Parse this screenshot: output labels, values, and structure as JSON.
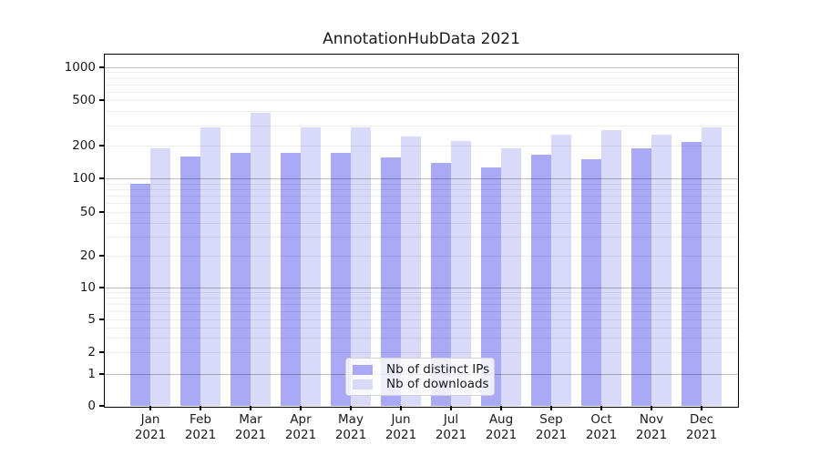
{
  "title": "AnnotationHubData 2021",
  "legend": {
    "items": [
      {
        "label": "Nb of distinct IPs",
        "color": "#a9a9f6"
      },
      {
        "label": "Nb of downloads",
        "color": "#d9d9f9"
      }
    ]
  },
  "chart_data": {
    "type": "bar",
    "title": "AnnotationHubData 2021",
    "categories": [
      "Jan",
      "Feb",
      "Mar",
      "Apr",
      "May",
      "Jun",
      "Jul",
      "Aug",
      "Sep",
      "Oct",
      "Nov",
      "Dec"
    ],
    "category_year": "2021",
    "series": [
      {
        "name": "Nb of distinct IPs",
        "color": "#a9a9f6",
        "values": [
          90,
          160,
          170,
          170,
          170,
          155,
          140,
          125,
          165,
          150,
          190,
          215
        ]
      },
      {
        "name": "Nb of downloads",
        "color": "#d9d9f9",
        "values": [
          190,
          290,
          390,
          290,
          290,
          240,
          220,
          190,
          250,
          275,
          250,
          290
        ]
      }
    ],
    "yscale": "symlog-like",
    "yticks": [
      0,
      1,
      2,
      5,
      10,
      20,
      50,
      100,
      200,
      500,
      1000
    ],
    "ylim": [
      0,
      1200
    ],
    "grid": "on",
    "legend_position": "lower center"
  }
}
